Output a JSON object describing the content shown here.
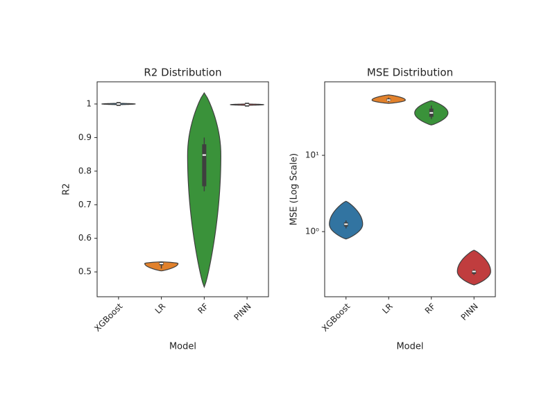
{
  "chart_data": [
    {
      "type": "violin",
      "title": "R2 Distribution",
      "xlabel": "Model",
      "ylabel": "R2",
      "categories": [
        "XGBoost",
        "LR",
        "RF",
        "PINN"
      ],
      "colors": [
        "#3274a1",
        "#e1812c",
        "#3a923a",
        "#c03d3e"
      ],
      "violins": [
        {
          "lo": 0.998,
          "hi": 1.002,
          "min": 0.999,
          "q1": 0.9995,
          "median": 1.0,
          "q3": 1.0005,
          "max": 1.001
        },
        {
          "lo": 0.503,
          "hi": 0.53,
          "min": 0.51,
          "q1": 0.52,
          "median": 0.525,
          "q3": 0.53,
          "max": 0.53
        },
        {
          "lo": 0.455,
          "hi": 1.033,
          "min": 0.74,
          "q1": 0.755,
          "median": 0.848,
          "q3": 0.88,
          "max": 0.9
        },
        {
          "lo": 0.996,
          "hi": 1.0,
          "min": 0.997,
          "q1": 0.9975,
          "median": 0.998,
          "q3": 0.9985,
          "max": 0.999
        }
      ],
      "ylim": [
        0.426,
        1.066
      ],
      "yticks": [
        0.5,
        0.6,
        0.7,
        0.8,
        0.9,
        1.0
      ],
      "log_scale": false
    },
    {
      "type": "violin",
      "title": "MSE Distribution",
      "xlabel": "Model",
      "ylabel": "MSE (Log Scale)",
      "categories": [
        "XGBoost",
        "LR",
        "RF",
        "PINN"
      ],
      "colors": [
        "#3274a1",
        "#e1812c",
        "#3a923a",
        "#c03d3e"
      ],
      "violins": [
        {
          "lo": 0.8,
          "hi": 2.5,
          "min": 1.1,
          "q1": 1.17,
          "median": 1.25,
          "q3": 1.32,
          "max": 1.4
        },
        {
          "lo": 48,
          "hi": 62,
          "min": 50,
          "q1": 52,
          "median": 53,
          "q3": 55,
          "max": 57
        },
        {
          "lo": 25,
          "hi": 52,
          "min": 30,
          "q1": 32,
          "median": 36,
          "q3": 41,
          "max": 45
        },
        {
          "lo": 0.2,
          "hi": 0.57,
          "min": 0.27,
          "q1": 0.28,
          "median": 0.3,
          "q3": 0.31,
          "max": 0.32
        }
      ],
      "ylim": [
        0.14,
        92
      ],
      "yticks": [
        {
          "value": 1,
          "label": "10⁰"
        },
        {
          "value": 10,
          "label": "10¹"
        }
      ],
      "log_scale": true
    }
  ]
}
